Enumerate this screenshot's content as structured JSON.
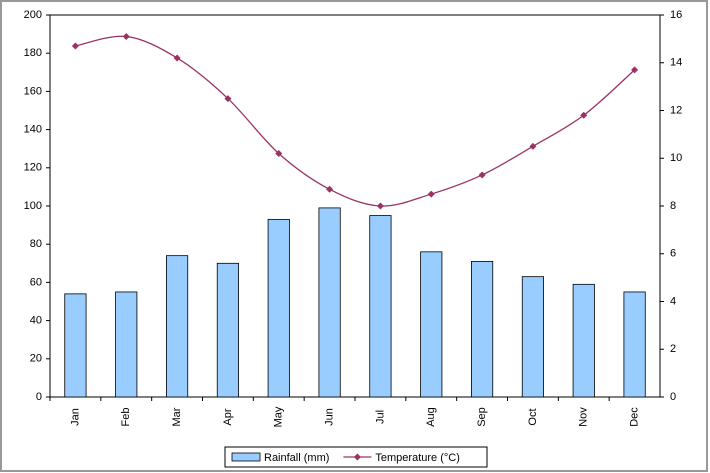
{
  "chart_data": {
    "type": "bar-line",
    "categories": [
      "Jan",
      "Feb",
      "Mar",
      "Apr",
      "May",
      "Jun",
      "Jul",
      "Aug",
      "Sep",
      "Oct",
      "Nov",
      "Dec"
    ],
    "series": [
      {
        "name": "Rainfall (mm)",
        "type": "bar",
        "color": "#99ccff",
        "values": [
          54,
          55,
          74,
          70,
          93,
          99,
          95,
          76,
          71,
          63,
          59,
          55
        ]
      },
      {
        "name": "Temperature (°C)",
        "type": "line",
        "axis": "y2",
        "color": "#993366",
        "values": [
          14.7,
          15.1,
          14.2,
          12.5,
          10.2,
          8.7,
          8.0,
          8.5,
          9.3,
          10.5,
          11.8,
          13.7
        ]
      }
    ],
    "ylim": [
      0,
      200
    ],
    "yticks": [
      0,
      20,
      40,
      60,
      80,
      100,
      120,
      140,
      160,
      180,
      200
    ],
    "y2lim": [
      0,
      16
    ],
    "y2ticks": [
      0,
      2,
      4,
      6,
      8,
      10,
      12,
      14,
      16
    ],
    "legend": "bottom"
  }
}
